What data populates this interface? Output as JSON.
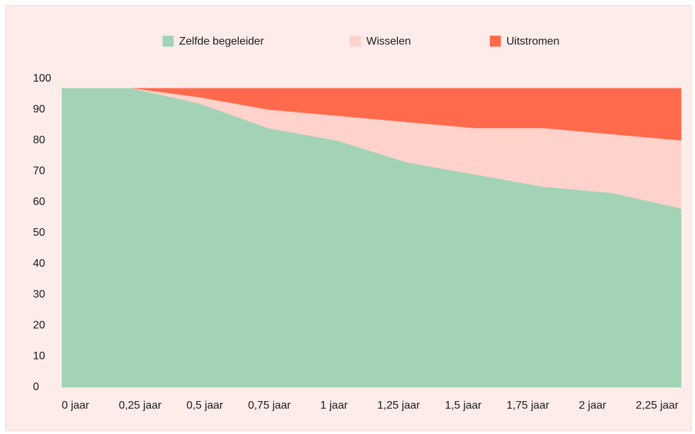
{
  "chart_data": {
    "type": "stacked_area",
    "categories": [
      "0 jaar",
      "0,25 jaar",
      "0,5 jaar",
      "0,75 jaar",
      "1 jaar",
      "1,25 jaar",
      "1,5 jaar",
      "1,75 jaar",
      "2 jaar",
      "2,25 jaar"
    ],
    "series": [
      {
        "name": "Zelfde begeleider",
        "color": "#a3d3b6",
        "values": [
          97,
          97,
          92,
          84,
          80,
          73,
          69,
          65,
          63,
          58
        ]
      },
      {
        "name": "Wisselen",
        "color": "#ffd2cc",
        "values": [
          0,
          0,
          2,
          6,
          8,
          13,
          15,
          19,
          19,
          22
        ]
      },
      {
        "name": "Uitstromen",
        "color": "#ff6a4c",
        "values": [
          0,
          0,
          3,
          7,
          9,
          11,
          13,
          13,
          15,
          17
        ]
      }
    ],
    "ylim": [
      0,
      100
    ],
    "yticks": [
      0,
      10,
      20,
      30,
      40,
      50,
      60,
      70,
      80,
      90,
      100
    ],
    "legend": "top"
  }
}
